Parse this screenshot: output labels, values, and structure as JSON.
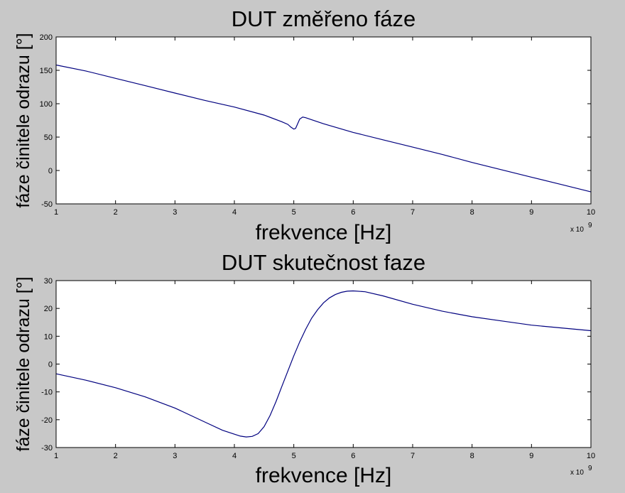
{
  "colors": {
    "background": "#c8c8c8",
    "plot_area": "#ffffff",
    "line": "#00007f",
    "axis": "#000000"
  },
  "chart_data": [
    {
      "type": "line",
      "title": "DUT změřeno fáze",
      "xlabel": "frekvence [Hz]",
      "ylabel": "fáze činitele odrazu [°]",
      "x_exponent_label": "x 10",
      "x_exponent_power": "9",
      "xlim": [
        1,
        10
      ],
      "ylim": [
        -50,
        200
      ],
      "xticks": [
        1,
        2,
        3,
        4,
        5,
        6,
        7,
        8,
        9,
        10
      ],
      "yticks": [
        -50,
        0,
        50,
        100,
        150,
        200
      ],
      "grid": false,
      "series": [
        {
          "x": [
            1,
            1.5,
            2,
            2.5,
            3,
            3.5,
            4,
            4.5,
            4.8,
            4.9,
            4.95,
            5.0,
            5.03,
            5.06,
            5.1,
            5.15,
            5.2,
            5.3,
            5.5,
            6,
            6.5,
            7,
            7.5,
            8,
            8.5,
            9,
            9.5,
            10
          ],
          "y": [
            158,
            149,
            138,
            127,
            116,
            105,
            95,
            83,
            73,
            69,
            65,
            62,
            63,
            69,
            77,
            80,
            79,
            76,
            70,
            57,
            46,
            35,
            24,
            12,
            1,
            -10,
            -21,
            -32
          ]
        }
      ]
    },
    {
      "type": "line",
      "title": "DUT skutečnost faze",
      "xlabel": "frekvence [Hz]",
      "ylabel": "fáze činitele odrazu [°]",
      "x_exponent_label": "x 10",
      "x_exponent_power": "9",
      "xlim": [
        1,
        10
      ],
      "ylim": [
        -30,
        30
      ],
      "xticks": [
        1,
        2,
        3,
        4,
        5,
        6,
        7,
        8,
        9,
        10
      ],
      "yticks": [
        -30,
        -20,
        -10,
        0,
        10,
        20,
        30
      ],
      "grid": false,
      "series": [
        {
          "x": [
            1,
            1.5,
            2,
            2.5,
            3,
            3.5,
            3.8,
            4,
            4.1,
            4.2,
            4.3,
            4.4,
            4.5,
            4.6,
            4.7,
            4.8,
            4.9,
            5,
            5.1,
            5.2,
            5.3,
            5.4,
            5.5,
            5.6,
            5.7,
            5.8,
            5.9,
            6,
            6.2,
            6.5,
            7,
            7.5,
            8,
            8.5,
            9,
            9.5,
            10
          ],
          "y": [
            -3.5,
            -5.8,
            -8.5,
            -11.8,
            -15.8,
            -20.8,
            -23.8,
            -25.2,
            -25.9,
            -26.2,
            -26.0,
            -25.0,
            -22.5,
            -18.5,
            -13.5,
            -8.0,
            -2.5,
            3.0,
            8.0,
            12.5,
            16.5,
            19.5,
            22.0,
            23.8,
            25.0,
            25.8,
            26.2,
            26.3,
            26.0,
            24.5,
            21.5,
            19.0,
            17.0,
            15.5,
            14.0,
            13.0,
            12.0
          ]
        }
      ]
    }
  ]
}
